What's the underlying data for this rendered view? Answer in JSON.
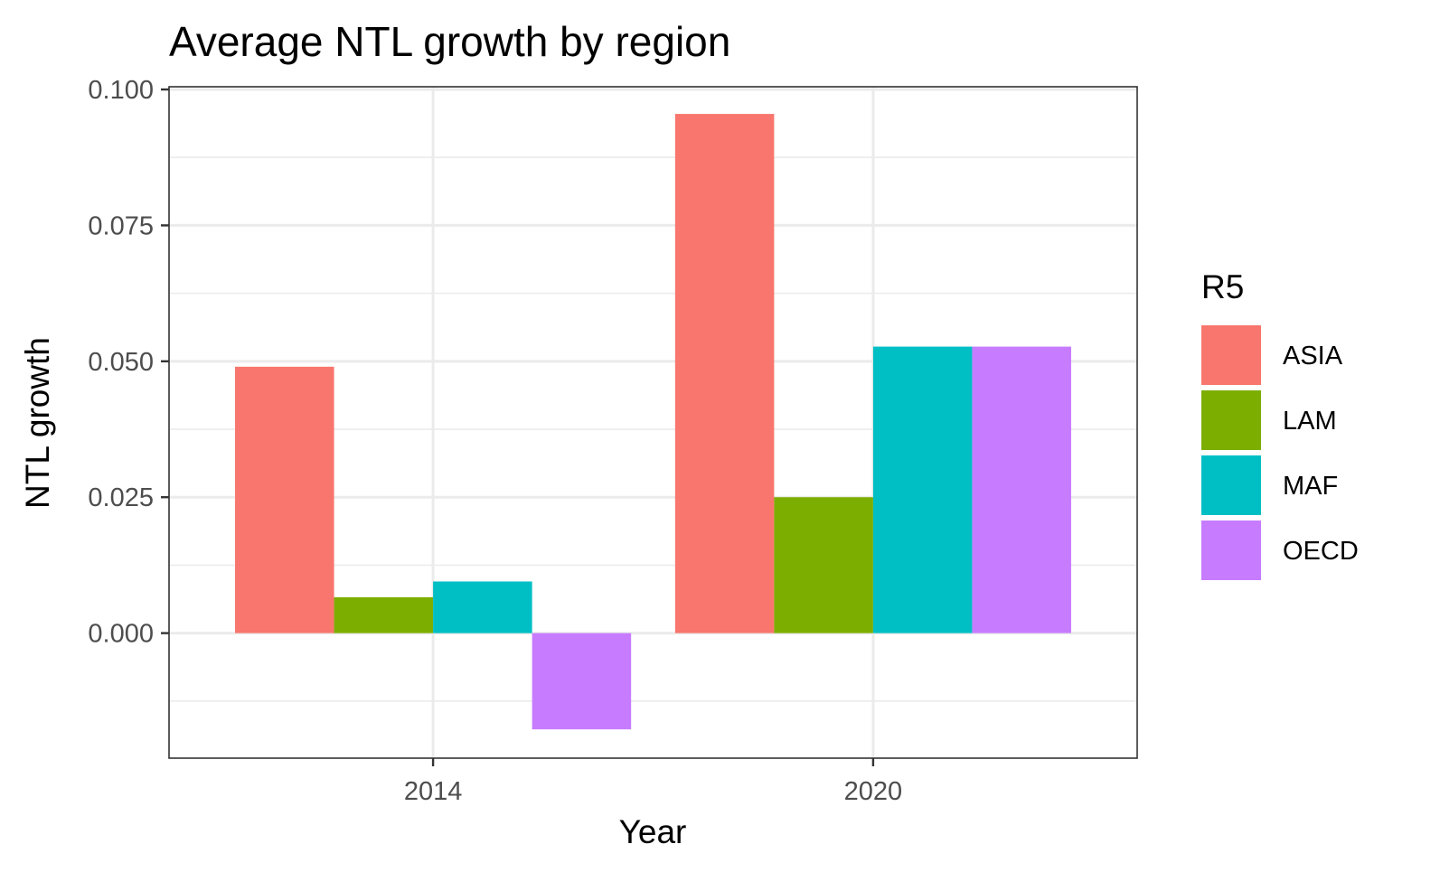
{
  "chart_data": {
    "type": "bar",
    "title": "Average NTL growth by region",
    "xlabel": "Year",
    "ylabel": "NTL growth",
    "categories": [
      "2014",
      "2020"
    ],
    "series": [
      {
        "name": "ASIA",
        "color": "#F8766D",
        "values": [
          0.049,
          0.0955
        ]
      },
      {
        "name": "LAM",
        "color": "#7CAE00",
        "values": [
          0.0066,
          0.025
        ]
      },
      {
        "name": "MAF",
        "color": "#00BFC4",
        "values": [
          0.0095,
          0.0527
        ]
      },
      {
        "name": "OECD",
        "color": "#C77CFF",
        "values": [
          -0.0177,
          0.0527
        ]
      }
    ],
    "ylim": [
      -0.023,
      0.1005
    ],
    "yticks": [
      0.0,
      0.025,
      0.05,
      0.075,
      0.1
    ],
    "ytick_labels": [
      "0.000",
      "0.025",
      "0.050",
      "0.075",
      "0.100"
    ],
    "legend": {
      "title": "R5",
      "placement": "right"
    },
    "grid": true
  }
}
